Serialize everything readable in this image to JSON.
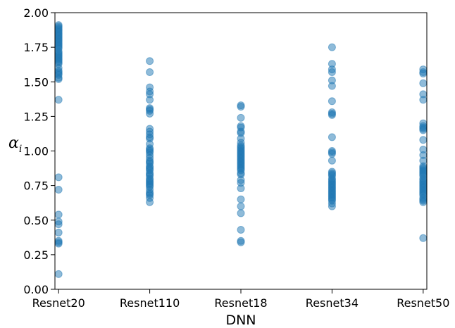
{
  "chart_data": {
    "type": "scatter",
    "xlabel": "DNN",
    "ylabel": "α",
    "ylabel_subscript": "i",
    "categories": [
      "Resnet20",
      "Resnet110",
      "Resnet18",
      "Resnet34",
      "Resnet50"
    ],
    "ylim": [
      0.0,
      2.0
    ],
    "yticks": [
      "0.00",
      "0.25",
      "0.50",
      "0.75",
      "1.00",
      "1.25",
      "1.50",
      "1.75",
      "2.00"
    ],
    "ytick_values": [
      0.0,
      0.25,
      0.5,
      0.75,
      1.0,
      1.25,
      1.5,
      1.75,
      2.0
    ],
    "grid": false,
    "marker_color": "#1f77b4",
    "marker_alpha": 0.5,
    "series": [
      {
        "values": [
          [
            0,
            1.91
          ],
          [
            0,
            1.9
          ],
          [
            0,
            1.89
          ],
          [
            0,
            1.88
          ],
          [
            0,
            1.87
          ],
          [
            0,
            1.86
          ],
          [
            0,
            1.85
          ],
          [
            0,
            1.84
          ],
          [
            0,
            1.83
          ],
          [
            0,
            1.82
          ],
          [
            0,
            1.81
          ],
          [
            0,
            1.8
          ],
          [
            0,
            1.79
          ],
          [
            0,
            1.78
          ],
          [
            0,
            1.77
          ],
          [
            0,
            1.76
          ],
          [
            0,
            1.75
          ],
          [
            0,
            1.74
          ],
          [
            0,
            1.72
          ],
          [
            0,
            1.71
          ],
          [
            0,
            1.7
          ],
          [
            0,
            1.69
          ],
          [
            0,
            1.68
          ],
          [
            0,
            1.67
          ],
          [
            0,
            1.66
          ],
          [
            0,
            1.65
          ],
          [
            0,
            1.64
          ],
          [
            0,
            1.63
          ],
          [
            0,
            1.6
          ],
          [
            0,
            1.58
          ],
          [
            0,
            1.57
          ],
          [
            0,
            1.56
          ],
          [
            0,
            1.55
          ],
          [
            0,
            1.53
          ],
          [
            0,
            1.52
          ],
          [
            0,
            1.37
          ],
          [
            0,
            0.81
          ],
          [
            0,
            0.72
          ],
          [
            0,
            0.54
          ],
          [
            0,
            0.49
          ],
          [
            0,
            0.47
          ],
          [
            0,
            0.41
          ],
          [
            0,
            0.35
          ],
          [
            0,
            0.34
          ],
          [
            0,
            0.33
          ],
          [
            0,
            0.11
          ],
          [
            1,
            1.65
          ],
          [
            1,
            1.57
          ],
          [
            1,
            1.46
          ],
          [
            1,
            1.43
          ],
          [
            1,
            1.41
          ],
          [
            1,
            1.37
          ],
          [
            1,
            1.31
          ],
          [
            1,
            1.3
          ],
          [
            1,
            1.29
          ],
          [
            1,
            1.27
          ],
          [
            1,
            1.16
          ],
          [
            1,
            1.14
          ],
          [
            1,
            1.12
          ],
          [
            1,
            1.1
          ],
          [
            1,
            1.09
          ],
          [
            1,
            1.05
          ],
          [
            1,
            1.02
          ],
          [
            1,
            1.01
          ],
          [
            1,
            1.0
          ],
          [
            1,
            0.99
          ],
          [
            1,
            0.97
          ],
          [
            1,
            0.95
          ],
          [
            1,
            0.93
          ],
          [
            1,
            0.92
          ],
          [
            1,
            0.91
          ],
          [
            1,
            0.89
          ],
          [
            1,
            0.88
          ],
          [
            1,
            0.87
          ],
          [
            1,
            0.86
          ],
          [
            1,
            0.84
          ],
          [
            1,
            0.83
          ],
          [
            1,
            0.82
          ],
          [
            1,
            0.8
          ],
          [
            1,
            0.79
          ],
          [
            1,
            0.78
          ],
          [
            1,
            0.77
          ],
          [
            1,
            0.76
          ],
          [
            1,
            0.75
          ],
          [
            1,
            0.74
          ],
          [
            1,
            0.72
          ],
          [
            1,
            0.7
          ],
          [
            1,
            0.69
          ],
          [
            1,
            0.68
          ],
          [
            1,
            0.66
          ],
          [
            1,
            0.63
          ],
          [
            2,
            1.33
          ],
          [
            2,
            1.32
          ],
          [
            2,
            1.24
          ],
          [
            2,
            1.18
          ],
          [
            2,
            1.17
          ],
          [
            2,
            1.14
          ],
          [
            2,
            1.13
          ],
          [
            2,
            1.09
          ],
          [
            2,
            1.06
          ],
          [
            2,
            1.04
          ],
          [
            2,
            1.03
          ],
          [
            2,
            1.02
          ],
          [
            2,
            1.01
          ],
          [
            2,
            1.0
          ],
          [
            2,
            0.99
          ],
          [
            2,
            0.98
          ],
          [
            2,
            0.97
          ],
          [
            2,
            0.96
          ],
          [
            2,
            0.95
          ],
          [
            2,
            0.94
          ],
          [
            2,
            0.93
          ],
          [
            2,
            0.92
          ],
          [
            2,
            0.91
          ],
          [
            2,
            0.9
          ],
          [
            2,
            0.89
          ],
          [
            2,
            0.88
          ],
          [
            2,
            0.87
          ],
          [
            2,
            0.86
          ],
          [
            2,
            0.84
          ],
          [
            2,
            0.83
          ],
          [
            2,
            0.79
          ],
          [
            2,
            0.77
          ],
          [
            2,
            0.73
          ],
          [
            2,
            0.65
          ],
          [
            2,
            0.6
          ],
          [
            2,
            0.55
          ],
          [
            2,
            0.43
          ],
          [
            2,
            0.35
          ],
          [
            2,
            0.34
          ],
          [
            3,
            1.75
          ],
          [
            3,
            1.63
          ],
          [
            3,
            1.59
          ],
          [
            3,
            1.57
          ],
          [
            3,
            1.51
          ],
          [
            3,
            1.47
          ],
          [
            3,
            1.36
          ],
          [
            3,
            1.28
          ],
          [
            3,
            1.27
          ],
          [
            3,
            1.26
          ],
          [
            3,
            1.1
          ],
          [
            3,
            1.0
          ],
          [
            3,
            0.99
          ],
          [
            3,
            0.98
          ],
          [
            3,
            0.93
          ],
          [
            3,
            0.85
          ],
          [
            3,
            0.84
          ],
          [
            3,
            0.83
          ],
          [
            3,
            0.82
          ],
          [
            3,
            0.8
          ],
          [
            3,
            0.79
          ],
          [
            3,
            0.78
          ],
          [
            3,
            0.77
          ],
          [
            3,
            0.76
          ],
          [
            3,
            0.75
          ],
          [
            3,
            0.74
          ],
          [
            3,
            0.73
          ],
          [
            3,
            0.72
          ],
          [
            3,
            0.71
          ],
          [
            3,
            0.7
          ],
          [
            3,
            0.69
          ],
          [
            3,
            0.68
          ],
          [
            3,
            0.67
          ],
          [
            3,
            0.66
          ],
          [
            3,
            0.65
          ],
          [
            3,
            0.64
          ],
          [
            3,
            0.62
          ],
          [
            3,
            0.6
          ],
          [
            4,
            1.59
          ],
          [
            4,
            1.57
          ],
          [
            4,
            1.56
          ],
          [
            4,
            1.49
          ],
          [
            4,
            1.41
          ],
          [
            4,
            1.37
          ],
          [
            4,
            1.2
          ],
          [
            4,
            1.18
          ],
          [
            4,
            1.17
          ],
          [
            4,
            1.16
          ],
          [
            4,
            1.15
          ],
          [
            4,
            1.08
          ],
          [
            4,
            1.01
          ],
          [
            4,
            0.97
          ],
          [
            4,
            0.93
          ],
          [
            4,
            0.89
          ],
          [
            4,
            0.88
          ],
          [
            4,
            0.87
          ],
          [
            4,
            0.86
          ],
          [
            4,
            0.85
          ],
          [
            4,
            0.84
          ],
          [
            4,
            0.83
          ],
          [
            4,
            0.82
          ],
          [
            4,
            0.8
          ],
          [
            4,
            0.79
          ],
          [
            4,
            0.78
          ],
          [
            4,
            0.77
          ],
          [
            4,
            0.76
          ],
          [
            4,
            0.75
          ],
          [
            4,
            0.74
          ],
          [
            4,
            0.73
          ],
          [
            4,
            0.72
          ],
          [
            4,
            0.71
          ],
          [
            4,
            0.7
          ],
          [
            4,
            0.69
          ],
          [
            4,
            0.68
          ],
          [
            4,
            0.66
          ],
          [
            4,
            0.65
          ],
          [
            4,
            0.64
          ],
          [
            4,
            0.63
          ],
          [
            4,
            0.37
          ]
        ]
      }
    ]
  }
}
